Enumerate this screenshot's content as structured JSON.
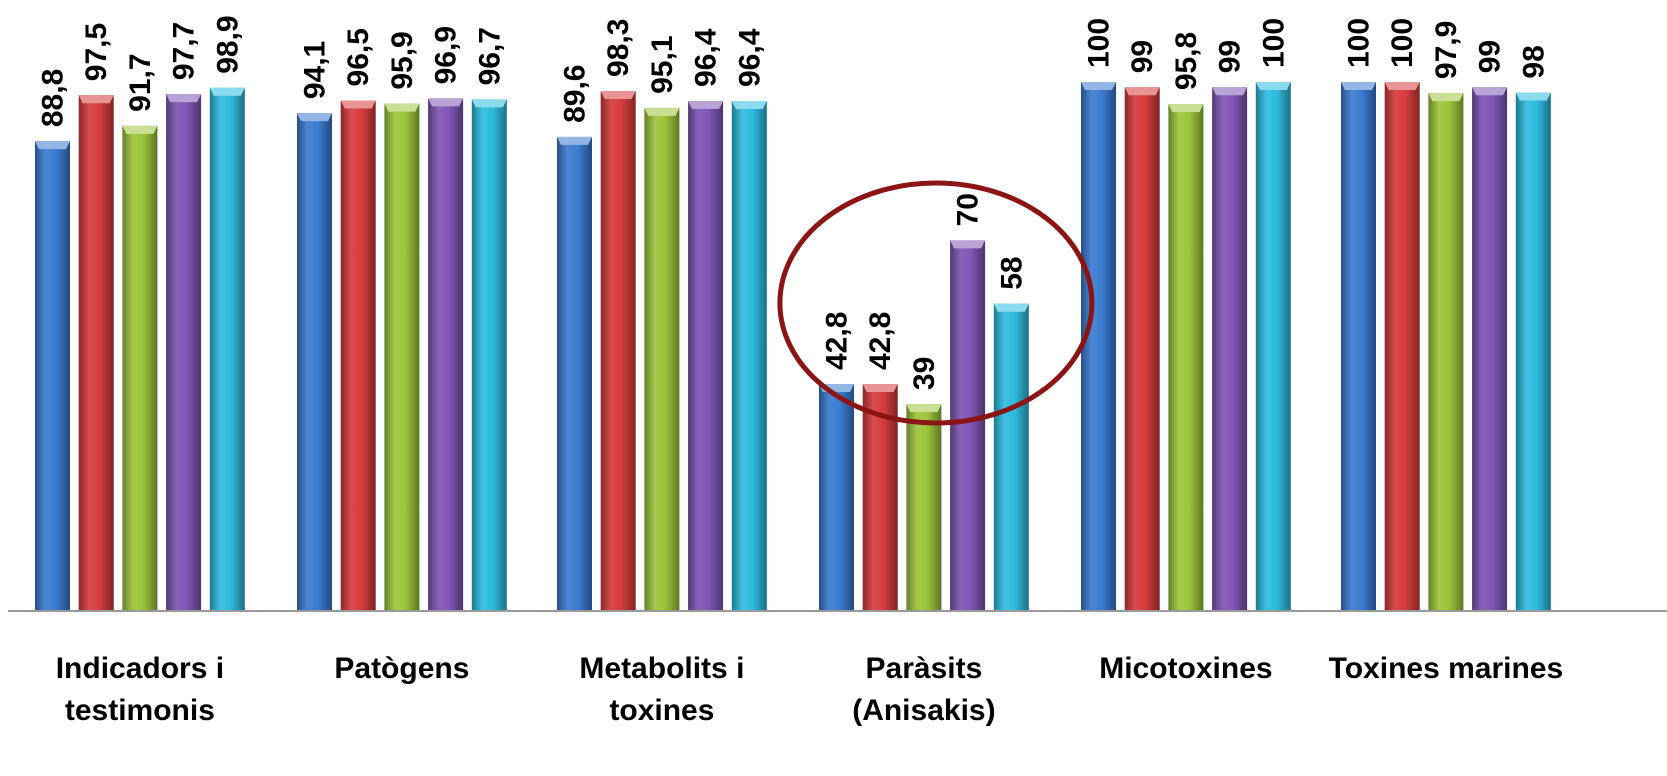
{
  "chart_data": {
    "type": "bar",
    "categories": [
      [
        "Indicadors i",
        "testimonis"
      ],
      [
        "Patògens"
      ],
      [
        "Metabolits i",
        "toxines"
      ],
      [
        "Paràsits",
        "(Anisakis)"
      ],
      [
        "Micotoxines"
      ],
      [
        "Toxines marines"
      ]
    ],
    "series": [
      {
        "color": "#3b7bd0",
        "values": [
          88.8,
          94.1,
          89.6,
          42.8,
          100,
          100
        ]
      },
      {
        "color": "#d63c3c",
        "values": [
          97.5,
          96.5,
          98.3,
          42.8,
          99,
          100
        ]
      },
      {
        "color": "#9cc43a",
        "values": [
          91.7,
          95.9,
          95.1,
          39,
          95.8,
          97.9
        ]
      },
      {
        "color": "#7f56b4",
        "values": [
          97.7,
          96.9,
          96.4,
          70,
          99,
          99
        ]
      },
      {
        "color": "#2ebbdf",
        "values": [
          98.9,
          96.7,
          96.4,
          58,
          100,
          98
        ]
      }
    ],
    "value_labels": [
      [
        "88,8",
        "94,1",
        "89,6",
        "42,8",
        "100",
        "100"
      ],
      [
        "97,5",
        "96,5",
        "98,3",
        "42,8",
        "99",
        "100"
      ],
      [
        "91,7",
        "95,9",
        "95,1",
        "39",
        "95,8",
        "97,9"
      ],
      [
        "97,7",
        "96,9",
        "96,4",
        "70",
        "99",
        "99"
      ],
      [
        "98,9",
        "96,7",
        "96,4",
        "58",
        "100",
        "98"
      ]
    ],
    "ylim": [
      0,
      100
    ],
    "grid": false,
    "legend": "none",
    "highlight": {
      "category_index": 3,
      "shape": "ellipse",
      "color": "#8b1414"
    },
    "title": "",
    "xlabel": "",
    "ylabel": ""
  }
}
